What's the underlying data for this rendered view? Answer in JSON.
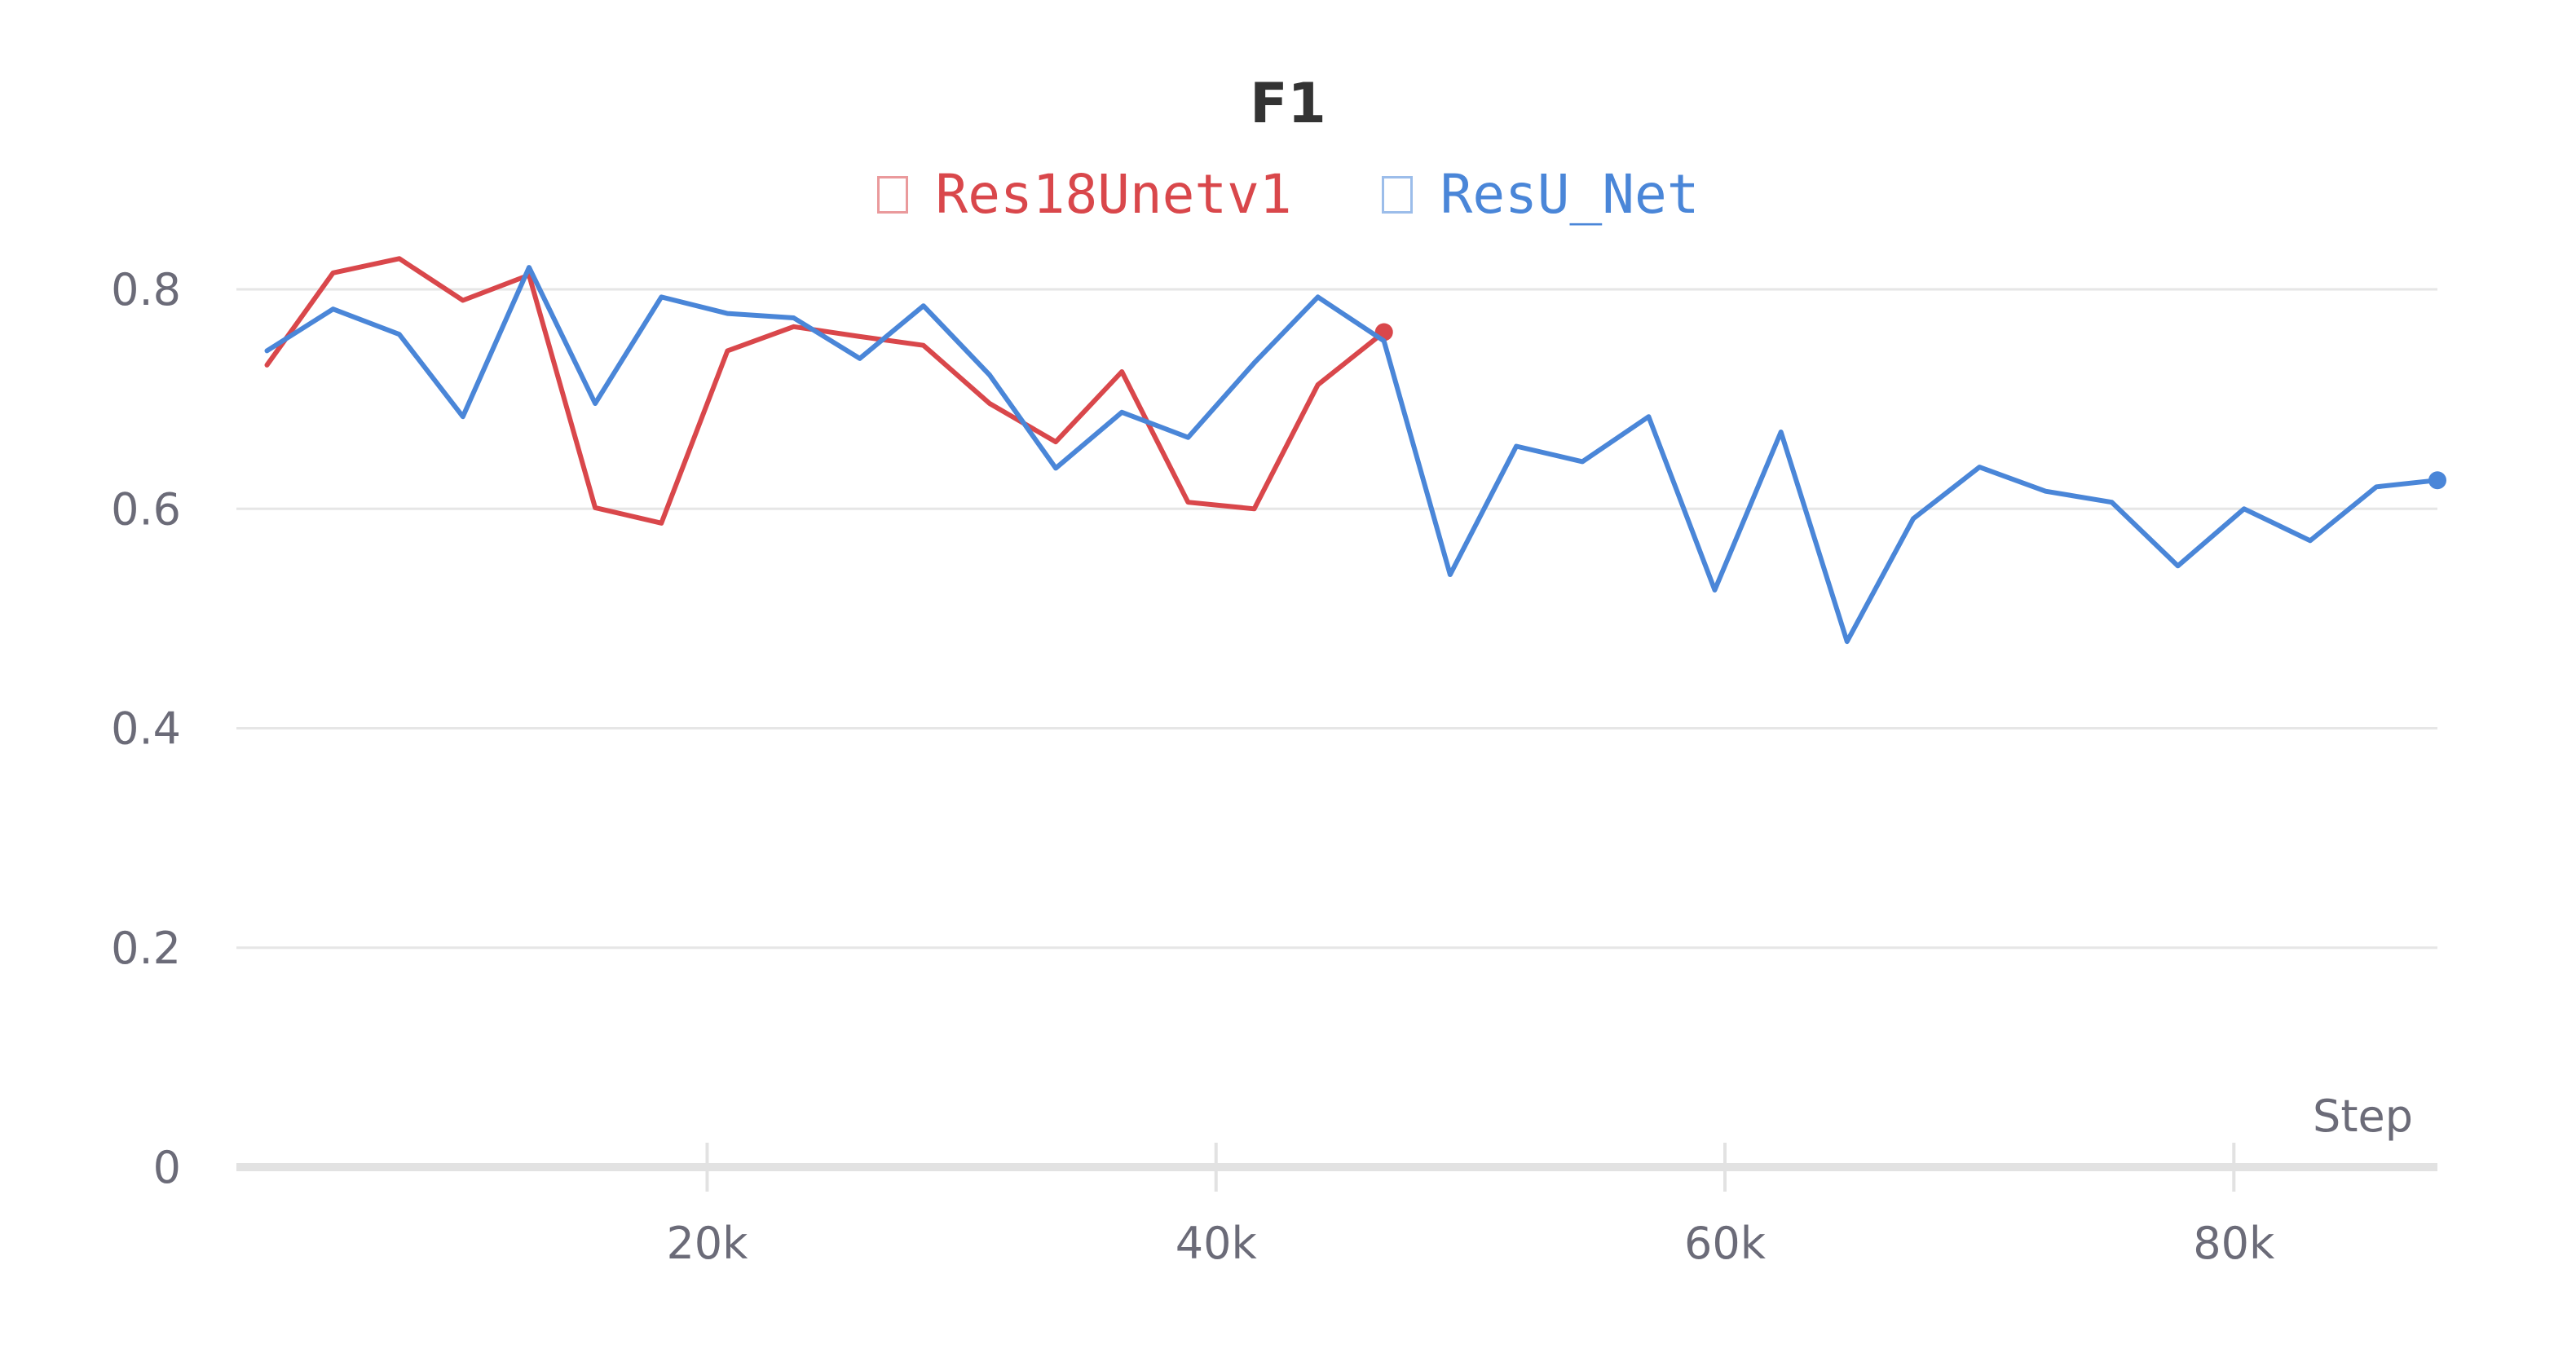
{
  "chart_data": {
    "type": "line",
    "title": "F1",
    "xlabel": "Step",
    "ylabel": "",
    "xlim": [
      1500,
      88000
    ],
    "ylim": [
      0,
      0.8
    ],
    "x_ticks": [
      {
        "value": 20000,
        "label": "20k"
      },
      {
        "value": 40000,
        "label": "40k"
      },
      {
        "value": 60000,
        "label": "60k"
      },
      {
        "value": 80000,
        "label": "80k"
      }
    ],
    "y_ticks": [
      {
        "value": 0,
        "label": "0"
      },
      {
        "value": 0.2,
        "label": "0.2"
      },
      {
        "value": 0.4,
        "label": "0.4"
      },
      {
        "value": 0.6,
        "label": "0.6"
      },
      {
        "value": 0.8,
        "label": "0.8"
      }
    ],
    "grid": true,
    "legend_position": "top-center",
    "series": [
      {
        "name": "Res18Unetv1",
        "color": "#d9474b",
        "x": [
          2700,
          5300,
          7900,
          10400,
          13000,
          15600,
          18200,
          20800,
          23400,
          26000,
          28500,
          31100,
          33700,
          36300,
          38900,
          41500,
          44000,
          46600
        ],
        "y": [
          0.731,
          0.815,
          0.828,
          0.79,
          0.813,
          0.601,
          0.587,
          0.744,
          0.766,
          0.757,
          0.749,
          0.696,
          0.661,
          0.725,
          0.606,
          0.6,
          0.713,
          0.761
        ]
      },
      {
        "name": "ResU_Net",
        "color": "#4a86d8",
        "x": [
          2700,
          5300,
          7900,
          10400,
          13000,
          15600,
          18200,
          20800,
          23400,
          26000,
          28500,
          31100,
          33700,
          36300,
          38900,
          41500,
          44000,
          46600,
          49200,
          51800,
          54400,
          57000,
          59600,
          62200,
          64800,
          67400,
          70000,
          72600,
          75200,
          77800,
          80400,
          83000,
          85600,
          88000
        ],
        "y": [
          0.744,
          0.782,
          0.759,
          0.684,
          0.82,
          0.696,
          0.793,
          0.778,
          0.774,
          0.737,
          0.785,
          0.722,
          0.637,
          0.688,
          0.665,
          0.733,
          0.793,
          0.753,
          0.54,
          0.657,
          0.643,
          0.684,
          0.526,
          0.67,
          0.479,
          0.591,
          0.638,
          0.616,
          0.606,
          0.548,
          0.6,
          0.571,
          0.62,
          0.626
        ]
      }
    ]
  }
}
